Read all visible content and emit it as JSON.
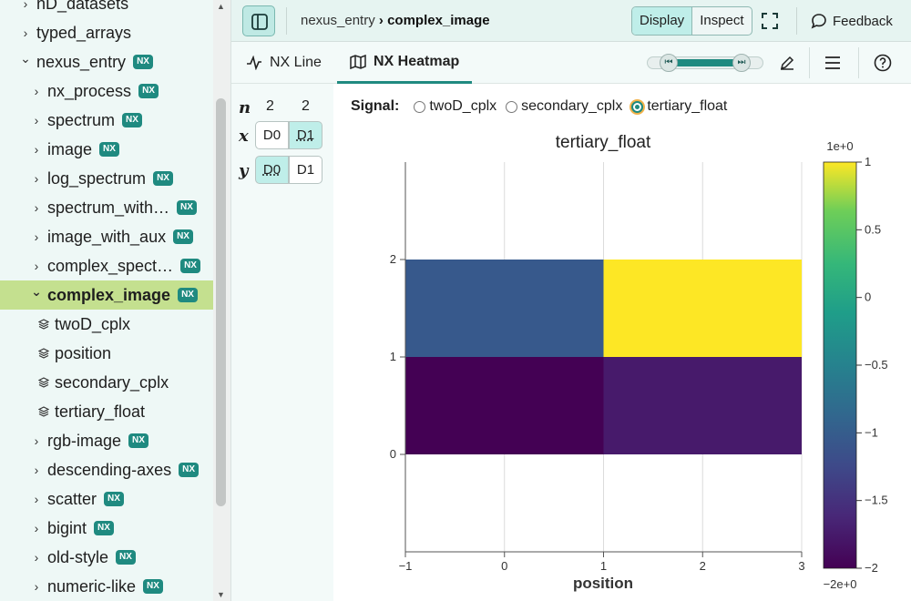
{
  "sidebar": {
    "items": [
      {
        "label": "nD_datasets",
        "type": "group",
        "level": 1,
        "nx": false,
        "expanded": false
      },
      {
        "label": "typed_arrays",
        "type": "group",
        "level": 1,
        "nx": false,
        "expanded": false
      },
      {
        "label": "nexus_entry",
        "type": "group",
        "level": 1,
        "nx": true,
        "expanded": true
      },
      {
        "label": "nx_process",
        "type": "group",
        "level": 2,
        "nx": true,
        "expanded": false
      },
      {
        "label": "spectrum",
        "type": "group",
        "level": 2,
        "nx": true,
        "expanded": false
      },
      {
        "label": "image",
        "type": "group",
        "level": 2,
        "nx": true,
        "expanded": false
      },
      {
        "label": "log_spectrum",
        "type": "group",
        "level": 2,
        "nx": true,
        "expanded": false
      },
      {
        "label": "spectrum_with…",
        "type": "group",
        "level": 2,
        "nx": true,
        "expanded": false
      },
      {
        "label": "image_with_aux",
        "type": "group",
        "level": 2,
        "nx": true,
        "expanded": false
      },
      {
        "label": "complex_spect…",
        "type": "group",
        "level": 2,
        "nx": true,
        "expanded": false
      },
      {
        "label": "complex_image",
        "type": "group",
        "level": 2,
        "nx": true,
        "expanded": true,
        "selected": true
      },
      {
        "label": "twoD_cplx",
        "type": "dataset",
        "level": 3,
        "nx": false
      },
      {
        "label": "position",
        "type": "dataset",
        "level": 3,
        "nx": false
      },
      {
        "label": "secondary_cplx",
        "type": "dataset",
        "level": 3,
        "nx": false
      },
      {
        "label": "tertiary_float",
        "type": "dataset",
        "level": 3,
        "nx": false
      },
      {
        "label": "rgb-image",
        "type": "group",
        "level": 2,
        "nx": true,
        "expanded": false
      },
      {
        "label": "descending-axes",
        "type": "group",
        "level": 2,
        "nx": true,
        "expanded": false
      },
      {
        "label": "scatter",
        "type": "group",
        "level": 2,
        "nx": true,
        "expanded": false
      },
      {
        "label": "bigint",
        "type": "group",
        "level": 2,
        "nx": true,
        "expanded": false
      },
      {
        "label": "old-style",
        "type": "group",
        "level": 2,
        "nx": true,
        "expanded": false
      },
      {
        "label": "numeric-like",
        "type": "group",
        "level": 2,
        "nx": true,
        "expanded": false
      }
    ],
    "nx_badge": "NX"
  },
  "topbar": {
    "breadcrumb_parent": "nexus_entry",
    "breadcrumb_sep": "›",
    "breadcrumb_current": "complex_image",
    "display_label": "Display",
    "inspect_label": "Inspect",
    "feedback_label": "Feedback",
    "active_mode": "Display"
  },
  "tabs": [
    {
      "label": "NX Line",
      "icon": "line-chart-icon",
      "active": false
    },
    {
      "label": "NX Heatmap",
      "icon": "map-icon",
      "active": true
    }
  ],
  "dims": {
    "n_label": "n",
    "x_label": "x",
    "y_label": "y",
    "sizes": [
      "2",
      "2"
    ],
    "x_buttons": [
      "D0",
      "D1"
    ],
    "x_active": "D1",
    "y_buttons": [
      "D0",
      "D1"
    ],
    "y_active": "D0"
  },
  "signal": {
    "label": "Signal:",
    "options": [
      "twoD_cplx",
      "secondary_cplx",
      "tertiary_float"
    ],
    "selected": "tertiary_float"
  },
  "chart_data": {
    "type": "heatmap",
    "title": "tertiary_float",
    "xlabel": "position",
    "ylabel": "",
    "x_edges": [
      -1,
      1,
      3
    ],
    "y_edges": [
      0,
      1,
      2
    ],
    "xlim": [
      -1,
      3
    ],
    "ylim": [
      -1,
      3
    ],
    "x_ticks": [
      -1,
      0,
      1,
      2,
      3
    ],
    "x_tick_labels": [
      "−1",
      "0",
      "1",
      "2",
      "3"
    ],
    "y_ticks": [
      0,
      1,
      2
    ],
    "y_tick_labels": [
      "0",
      "1",
      "2"
    ],
    "values": [
      [
        -2,
        -1.75
      ],
      [
        -1.05,
        1
      ]
    ],
    "vmin": -2,
    "vmax": 1,
    "colormap": "viridis",
    "colorbar_ticks": [
      1,
      0.5,
      0,
      -0.5,
      -1,
      -1.5,
      -2
    ],
    "colorbar_tick_labels": [
      "1",
      "0.5",
      "0",
      "−0.5",
      "−1",
      "−1.5",
      "−2"
    ],
    "colorbar_max_label": "1e+0",
    "colorbar_min_label": "−2e+0",
    "grid": true
  }
}
